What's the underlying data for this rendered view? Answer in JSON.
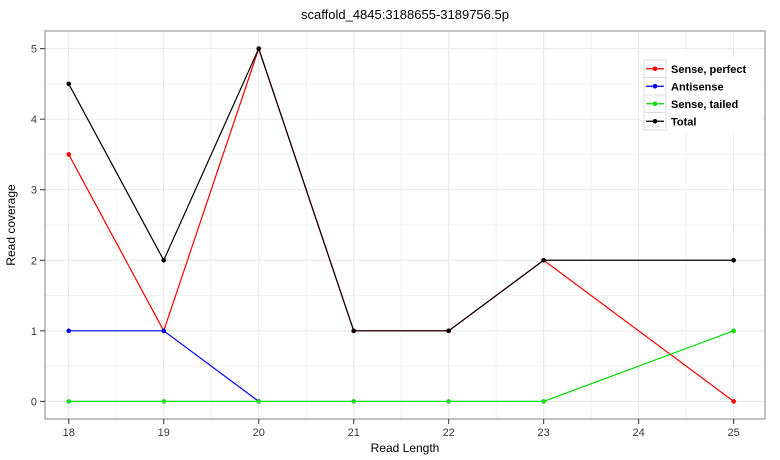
{
  "figure": {
    "title": "scaffold_4845:3188655-3189756.5p",
    "x_axis_label": "Read Length",
    "y_axis_label": "Read coverage"
  },
  "chart_data": {
    "type": "line",
    "title": "scaffold_4845:3188655-3189756.5p",
    "xlabel": "Read Length",
    "ylabel": "Read coverage",
    "x_ticks": [
      18,
      19,
      20,
      21,
      22,
      23,
      24,
      25
    ],
    "y_ticks": [
      0,
      1,
      2,
      3,
      4,
      5
    ],
    "xlim": [
      17.75,
      25.33
    ],
    "ylim": [
      -0.25,
      5.25
    ],
    "grid": {
      "major": true,
      "minor": true,
      "major_color": "#e6e6e6",
      "minor_color": "#f3f3f3"
    },
    "panel": {
      "border_color": "#999999",
      "background": "#ffffff"
    },
    "legend": {
      "position": "top-right-inside",
      "entries": [
        "Sense, perfect",
        "Antisense",
        "Sense, tailed",
        "Total"
      ]
    },
    "series": [
      {
        "name": "Sense, perfect",
        "color": "#ff0000",
        "points": [
          [
            18,
            3.5
          ],
          [
            19,
            1
          ],
          [
            20,
            5
          ],
          [
            21,
            1
          ],
          [
            22,
            1
          ],
          [
            23,
            2
          ],
          [
            25,
            0
          ]
        ]
      },
      {
        "name": "Antisense",
        "color": "#0000ff",
        "points": [
          [
            18,
            1
          ],
          [
            19,
            1
          ],
          [
            20,
            0
          ]
        ]
      },
      {
        "name": "Sense, tailed",
        "color": "#00dd00",
        "points": [
          [
            18,
            0
          ],
          [
            19,
            0
          ],
          [
            20,
            0
          ],
          [
            21,
            0
          ],
          [
            22,
            0
          ],
          [
            23,
            0
          ],
          [
            25,
            1
          ]
        ]
      },
      {
        "name": "Total",
        "color": "#000000",
        "points": [
          [
            18,
            4.5
          ],
          [
            19,
            2
          ],
          [
            20,
            5
          ],
          [
            21,
            1
          ],
          [
            22,
            1
          ],
          [
            23,
            2
          ],
          [
            25,
            2
          ]
        ]
      }
    ]
  }
}
